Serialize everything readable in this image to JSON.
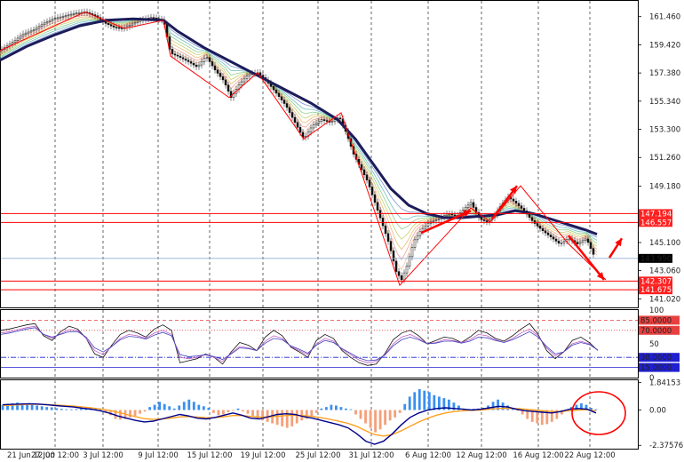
{
  "chart_data": {
    "type": "line",
    "panes": {
      "price": {
        "y_ticks": [
          "161.460",
          "159.420",
          "157.380",
          "155.340",
          "153.300",
          "151.260",
          "149.180",
          "147.194",
          "146.557",
          "145.100",
          "143.950",
          "143.060",
          "142.307",
          "141.675",
          "141.020"
        ],
        "y_range": [
          140.4,
          162.6
        ],
        "current_price": "143.950",
        "levels": [
          {
            "label": "147.194",
            "value": 147.194
          },
          {
            "label": "146.557",
            "value": 146.557
          },
          {
            "label": "142.307",
            "value": 142.307
          },
          {
            "label": "141.675",
            "value": 141.675
          }
        ],
        "close_path": [
          [
            0,
            159.0
          ],
          [
            14,
            159.6
          ],
          [
            26,
            160.2
          ],
          [
            38,
            160.5
          ],
          [
            50,
            161.0
          ],
          [
            60,
            161.3
          ],
          [
            72,
            161.5
          ],
          [
            84,
            161.7
          ],
          [
            96,
            161.8
          ],
          [
            108,
            161.5
          ],
          [
            118,
            161.0
          ],
          [
            128,
            160.7
          ],
          [
            138,
            160.6
          ],
          [
            148,
            160.9
          ],
          [
            158,
            161.2
          ],
          [
            170,
            161.4
          ],
          [
            184,
            161.2
          ],
          [
            192,
            158.8
          ],
          [
            200,
            158.6
          ],
          [
            212,
            158.2
          ],
          [
            222,
            157.8
          ],
          [
            232,
            158.6
          ],
          [
            242,
            157.6
          ],
          [
            252,
            156.8
          ],
          [
            260,
            155.6
          ],
          [
            270,
            156.6
          ],
          [
            280,
            157.3
          ],
          [
            290,
            157.4
          ],
          [
            300,
            156.8
          ],
          [
            310,
            156.0
          ],
          [
            322,
            155.0
          ],
          [
            332,
            153.8
          ],
          [
            342,
            152.6
          ],
          [
            352,
            153.6
          ],
          [
            362,
            154.0
          ],
          [
            372,
            153.8
          ],
          [
            382,
            154.2
          ],
          [
            390,
            153.0
          ],
          [
            398,
            151.5
          ],
          [
            406,
            150.5
          ],
          [
            414,
            149.5
          ],
          [
            422,
            148.0
          ],
          [
            430,
            146.5
          ],
          [
            438,
            145.0
          ],
          [
            446,
            143.0
          ],
          [
            452,
            142.4
          ],
          [
            458,
            143.4
          ],
          [
            466,
            145.2
          ],
          [
            474,
            146.0
          ],
          [
            484,
            146.6
          ],
          [
            494,
            146.8
          ],
          [
            504,
            147.2
          ],
          [
            514,
            147.0
          ],
          [
            522,
            147.5
          ],
          [
            530,
            148.0
          ],
          [
            540,
            146.8
          ],
          [
            548,
            146.6
          ],
          [
            556,
            147.0
          ],
          [
            564,
            147.8
          ],
          [
            572,
            148.4
          ],
          [
            580,
            148.0
          ],
          [
            590,
            147.4
          ],
          [
            600,
            146.6
          ],
          [
            610,
            146.0
          ],
          [
            620,
            145.5
          ],
          [
            630,
            145.0
          ],
          [
            640,
            145.4
          ],
          [
            650,
            145.0
          ],
          [
            660,
            145.4
          ],
          [
            670,
            143.95
          ]
        ],
        "ma_path": [
          [
            0,
            158.3
          ],
          [
            30,
            159.3
          ],
          [
            60,
            160.1
          ],
          [
            90,
            160.8
          ],
          [
            120,
            161.2
          ],
          [
            150,
            161.3
          ],
          [
            184,
            161.2
          ],
          [
            200,
            160.4
          ],
          [
            230,
            159.2
          ],
          [
            260,
            158.2
          ],
          [
            290,
            157.2
          ],
          [
            320,
            156.2
          ],
          [
            350,
            155.2
          ],
          [
            380,
            154.0
          ],
          [
            400,
            152.6
          ],
          [
            420,
            150.8
          ],
          [
            440,
            149.0
          ],
          [
            460,
            147.8
          ],
          [
            480,
            147.2
          ],
          [
            500,
            146.9
          ],
          [
            520,
            146.9
          ],
          [
            540,
            147.0
          ],
          [
            560,
            147.1
          ],
          [
            580,
            147.4
          ],
          [
            600,
            147.2
          ],
          [
            620,
            146.8
          ],
          [
            640,
            146.4
          ],
          [
            660,
            146.0
          ],
          [
            672,
            145.7
          ]
        ],
        "annotations": {
          "red_arrows": [
            {
              "from": [
                640,
                145.6
              ],
              "to": [
                680,
                142.4
              ]
            },
            {
              "from": [
                686,
                144.0
              ],
              "to": [
                700,
                145.4
              ]
            },
            {
              "from": [
                474,
                145.8
              ],
              "to": [
                530,
                147.4
              ]
            },
            {
              "from": [
                554,
                146.8
              ],
              "to": [
                582,
                149.2
              ]
            }
          ],
          "zigzag": [
            [
              0,
              159.0
            ],
            [
              96,
              161.8
            ],
            [
              140,
              160.6
            ],
            [
              184,
              161.2
            ],
            [
              192,
              158.6
            ],
            [
              258,
              155.6
            ],
            [
              290,
              157.4
            ],
            [
              342,
              152.6
            ],
            [
              384,
              154.5
            ],
            [
              450,
              142.0
            ],
            [
              530,
              147.6
            ],
            [
              552,
              146.6
            ],
            [
              586,
              149.2
            ],
            [
              640,
              145.0
            ],
            [
              682,
              142.4
            ]
          ]
        }
      },
      "oscillator": {
        "y_range": [
          0,
          100
        ],
        "y_ticks": [
          "100",
          "85.0000",
          "70.0000",
          "50",
          "30.0000",
          "15.0000",
          "0"
        ],
        "levels": [
          {
            "label": "85.0000",
            "value": 85,
            "color": "#e84040",
            "style": "dashed"
          },
          {
            "label": "70.0000",
            "value": 70,
            "color": "#e84040",
            "style": "dotted"
          },
          {
            "label": "30.0000",
            "value": 30,
            "color": "#2020d0",
            "style": "dashdot"
          },
          {
            "label": "15.0000",
            "value": 15,
            "color": "#2020d0",
            "style": "solid"
          }
        ],
        "series": [
          {
            "color": "#111111",
            "values": [
              70,
              72,
              75,
              78,
              80,
              62,
              55,
              68,
              76,
              72,
              58,
              35,
              30,
              48,
              64,
              70,
              66,
              60,
              72,
              78,
              70,
              22,
              25,
              28,
              35,
              30,
              20,
              38,
              52,
              48,
              40,
              60,
              70,
              62,
              45,
              38,
              30,
              55,
              64,
              58,
              40,
              30,
              22,
              18,
              20,
              35,
              56,
              66,
              70,
              62,
              50,
              55,
              60,
              58,
              52,
              60,
              70,
              66,
              58,
              54,
              62,
              72,
              80,
              64,
              40,
              28,
              38,
              55,
              60,
              52,
              40
            ]
          },
          {
            "color": "#c060c0",
            "values": [
              66,
              68,
              71,
              74,
              76,
              64,
              58,
              65,
              71,
              70,
              58,
              40,
              34,
              46,
              58,
              64,
              62,
              58,
              66,
              70,
              64,
              30,
              28,
              30,
              34,
              30,
              24,
              36,
              46,
              44,
              40,
              54,
              62,
              58,
              46,
              40,
              34,
              50,
              58,
              54,
              42,
              34,
              26,
              22,
              24,
              34,
              50,
              60,
              64,
              58,
              50,
              52,
              56,
              55,
              52,
              56,
              64,
              62,
              56,
              52,
              58,
              66,
              72,
              62,
              44,
              32,
              38,
              50,
              54,
              50,
              40
            ]
          },
          {
            "color": "#4040c0",
            "values": [
              64,
              66,
              69,
              72,
              74,
              64,
              60,
              64,
              68,
              68,
              60,
              44,
              38,
              46,
              56,
              61,
              60,
              57,
              63,
              67,
              62,
              34,
              31,
              32,
              34,
              31,
              27,
              35,
              44,
              43,
              40,
              51,
              58,
              56,
              47,
              42,
              36,
              48,
              55,
              52,
              43,
              36,
              29,
              25,
              26,
              33,
              47,
              56,
              60,
              56,
              50,
              51,
              54,
              54,
              51,
              54,
              60,
              59,
              55,
              52,
              56,
              62,
              68,
              60,
              46,
              35,
              38,
              48,
              52,
              49,
              41
            ]
          }
        ]
      },
      "macd": {
        "y_range": [
          -2.6,
          2.0
        ],
        "y_ticks": [
          "1.84153",
          "0.00",
          "-2.37576"
        ],
        "histogram": [
          0.35,
          0.4,
          0.45,
          0.5,
          0.45,
          0.4,
          0.35,
          0.3,
          0.25,
          0.2,
          0.18,
          0.12,
          0.08,
          0.05,
          0.05,
          0.06,
          0.08,
          0.1,
          0.12,
          0.1,
          0.05,
          -0.15,
          -0.35,
          -0.6,
          -0.65,
          -0.6,
          -0.5,
          -0.4,
          -0.25,
          -0.1,
          0.2,
          0.35,
          0.55,
          0.4,
          0.25,
          0.1,
          0.3,
          0.55,
          0.7,
          0.55,
          0.35,
          0.25,
          0.15,
          -0.2,
          -0.35,
          -0.3,
          -0.15,
          -0.05,
          0.1,
          -0.1,
          -0.25,
          -0.4,
          -0.55,
          -0.7,
          -0.8,
          -0.9,
          -1.0,
          -1.1,
          -1.2,
          -1.1,
          -0.9,
          -0.7,
          -0.6,
          -0.4,
          -0.2,
          0.1,
          0.2,
          0.35,
          0.3,
          0.2,
          0.1,
          0.05,
          -0.3,
          -0.6,
          -0.9,
          -1.2,
          -1.5,
          -1.3,
          -1.0,
          -0.7,
          -0.5,
          -0.2,
          0.4,
          0.9,
          1.2,
          1.4,
          1.3,
          1.2,
          1.0,
          0.9,
          0.8,
          0.7,
          0.5,
          0.3,
          0.1,
          0.05,
          0.08,
          0.1,
          0.15,
          0.3,
          0.55,
          0.7,
          0.5,
          0.3,
          0.1,
          -0.05,
          -0.3,
          -0.6,
          -0.8,
          -0.9,
          -1.0,
          -0.95,
          -0.8,
          -0.6,
          -0.3,
          -0.05,
          0.2,
          0.35,
          0.45,
          0.35,
          0.15,
          0.05
        ],
        "main_line": [
          0.35,
          0.38,
          0.4,
          0.42,
          0.4,
          0.35,
          0.3,
          0.25,
          0.2,
          0.12,
          0.05,
          -0.05,
          -0.2,
          -0.4,
          -0.55,
          -0.7,
          -0.8,
          -0.75,
          -0.6,
          -0.45,
          -0.3,
          -0.4,
          -0.55,
          -0.6,
          -0.5,
          -0.35,
          -0.2,
          -0.35,
          -0.55,
          -0.6,
          -0.45,
          -0.3,
          -0.25,
          -0.3,
          -0.45,
          -0.55,
          -0.7,
          -0.85,
          -1.0,
          -1.2,
          -1.6,
          -2.1,
          -2.3,
          -2.1,
          -1.6,
          -1.0,
          -0.5,
          -0.2,
          0.0,
          0.1,
          0.15,
          0.1,
          0.05,
          0.0,
          0.05,
          0.15,
          0.25,
          0.2,
          0.05,
          -0.05,
          -0.1,
          -0.15,
          -0.2,
          -0.1,
          0.05,
          0.1,
          0.05,
          -0.2
        ],
        "signal_line": [
          0.3,
          0.33,
          0.36,
          0.38,
          0.38,
          0.36,
          0.33,
          0.3,
          0.26,
          0.2,
          0.14,
          0.07,
          -0.02,
          -0.15,
          -0.3,
          -0.45,
          -0.58,
          -0.62,
          -0.6,
          -0.54,
          -0.46,
          -0.44,
          -0.48,
          -0.52,
          -0.51,
          -0.45,
          -0.37,
          -0.37,
          -0.43,
          -0.48,
          -0.47,
          -0.42,
          -0.37,
          -0.35,
          -0.38,
          -0.43,
          -0.52,
          -0.63,
          -0.76,
          -0.9,
          -1.1,
          -1.4,
          -1.65,
          -1.75,
          -1.65,
          -1.4,
          -1.1,
          -0.8,
          -0.55,
          -0.35,
          -0.2,
          -0.1,
          -0.05,
          -0.02,
          0.0,
          0.05,
          0.1,
          0.12,
          0.1,
          0.05,
          0.0,
          -0.05,
          -0.1,
          -0.1,
          -0.05,
          0.0,
          0.02,
          -0.05
        ],
        "highlight": "circle"
      }
    },
    "x_ticks": [
      "21 Jun 12:00",
      "27 Jun 12:00",
      "3 Jul 12:00",
      "9 Jul 12:00",
      "15 Jul 12:00",
      "19 Jul 12:00",
      "25 Jul 12:00",
      "31 Jul 12:00",
      "6 Aug 12:00",
      "12 Aug 12:00",
      "16 Aug 12:00",
      "22 Aug 12:00"
    ],
    "colors": {
      "level_line": "#ff0000",
      "level_tag": "#ff2020",
      "ma_thick": "#1c1c5a",
      "price_tag": "#000000",
      "arrow": "#ff0000",
      "hist_pos": "#3a8ff0",
      "hist_neg": "#f4a07a",
      "macd_main": "#00008b",
      "macd_signal": "#ffa020",
      "grid": "#000000",
      "border": "#000000"
    }
  }
}
